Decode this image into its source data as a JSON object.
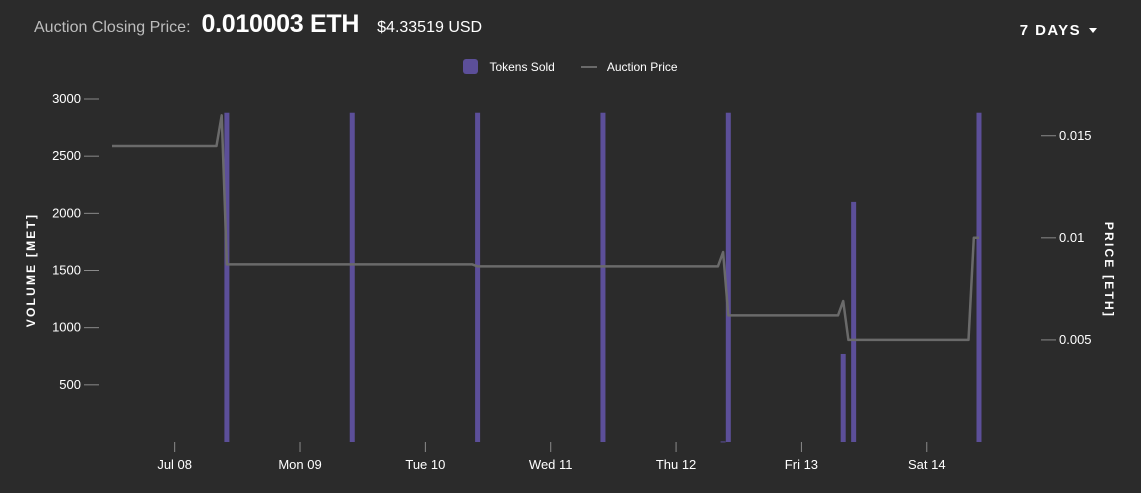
{
  "header": {
    "label": "Auction Closing Price:",
    "price_eth": "0.010003 ETH",
    "price_usd": "$4.33519 USD"
  },
  "range_selector": {
    "label": "7 DAYS"
  },
  "colors": {
    "bar": "#5c4f99",
    "line": "#6a6a6a",
    "background": "#2b2b2b"
  },
  "chart_data": {
    "type": "bar",
    "left_axis": {
      "label": "VOLUME [MET]",
      "range": [
        0,
        3000
      ],
      "ticks": [
        500,
        1000,
        1500,
        2000,
        2500,
        3000
      ]
    },
    "right_axis": {
      "label": "PRICE [ETH]",
      "range": [
        0,
        0.0168
      ],
      "ticks": [
        0.005,
        0.01,
        0.015
      ],
      "tick_labels": [
        "0.005",
        "0.01",
        "0.015"
      ]
    },
    "x_axis": {
      "start": "2018-07-07T12:00",
      "end": "2018-07-14T19:00",
      "tick_labels": [
        {
          "label": "Jul 08",
          "date": "2018-07-08T00:00"
        },
        {
          "label": "Mon 09",
          "date": "2018-07-09T00:00"
        },
        {
          "label": "Tue 10",
          "date": "2018-07-10T00:00"
        },
        {
          "label": "Wed 11",
          "date": "2018-07-11T00:00"
        },
        {
          "label": "Thu 12",
          "date": "2018-07-12T00:00"
        },
        {
          "label": "Fri 13",
          "date": "2018-07-13T00:00"
        },
        {
          "label": "Sat 14",
          "date": "2018-07-14T00:00"
        }
      ]
    },
    "series": [
      {
        "name": "Tokens Sold",
        "type": "bar",
        "axis": "left",
        "points": [
          {
            "x": "2018-07-08T10:00",
            "y": 2880
          },
          {
            "x": "2018-07-09T10:00",
            "y": 2880
          },
          {
            "x": "2018-07-10T10:00",
            "y": 2880
          },
          {
            "x": "2018-07-11T10:00",
            "y": 2880
          },
          {
            "x": "2018-07-12T09:00",
            "y": 5
          },
          {
            "x": "2018-07-12T10:00",
            "y": 2880
          },
          {
            "x": "2018-07-13T08:00",
            "y": 770
          },
          {
            "x": "2018-07-13T10:00",
            "y": 2100
          },
          {
            "x": "2018-07-14T10:00",
            "y": 2880
          }
        ]
      },
      {
        "name": "Auction Price",
        "type": "line",
        "axis": "right",
        "points": [
          {
            "x": "2018-07-07T12:00",
            "y": 0.0145
          },
          {
            "x": "2018-07-08T08:00",
            "y": 0.0145
          },
          {
            "x": "2018-07-08T09:00",
            "y": 0.016
          },
          {
            "x": "2018-07-08T10:00",
            "y": 0.0087
          },
          {
            "x": "2018-07-10T09:00",
            "y": 0.0087
          },
          {
            "x": "2018-07-10T10:00",
            "y": 0.0086
          },
          {
            "x": "2018-07-12T08:00",
            "y": 0.0086
          },
          {
            "x": "2018-07-12T09:00",
            "y": 0.0093
          },
          {
            "x": "2018-07-12T10:00",
            "y": 0.0062
          },
          {
            "x": "2018-07-13T07:00",
            "y": 0.0062
          },
          {
            "x": "2018-07-13T08:00",
            "y": 0.0069
          },
          {
            "x": "2018-07-13T09:00",
            "y": 0.005
          },
          {
            "x": "2018-07-14T08:00",
            "y": 0.005
          },
          {
            "x": "2018-07-14T09:00",
            "y": 0.01
          },
          {
            "x": "2018-07-14T10:00",
            "y": 0.01
          }
        ]
      }
    ],
    "legend": [
      "Tokens Sold",
      "Auction Price"
    ],
    "legend_position": "top-center",
    "grid": false
  }
}
